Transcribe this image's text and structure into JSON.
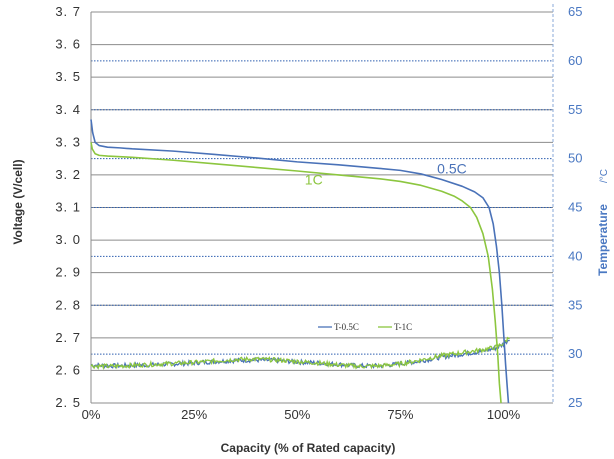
{
  "chart_data": {
    "type": "line",
    "xlabel": "Capacity  (% of Rated capacity)",
    "ylabel": "Voltage  (V/cell)",
    "y2label": "Temperature",
    "y2unit": "/°C",
    "xlim": [
      0,
      112
    ],
    "ylim": [
      2.5,
      3.7
    ],
    "y2lim": [
      25,
      65
    ],
    "xticks": [
      "0%",
      "25%",
      "50%",
      "75%",
      "100%"
    ],
    "xtick_values": [
      0,
      25,
      50,
      75,
      100
    ],
    "yticks": [
      "2. 5",
      "2. 6",
      "2. 7",
      "2. 8",
      "2. 9",
      "3. 0",
      "3. 1",
      "3. 2",
      "3. 3",
      "3. 4",
      "3. 5",
      "3. 6",
      "3. 7"
    ],
    "ytick_values": [
      2.5,
      2.6,
      2.7,
      2.8,
      2.9,
      3.0,
      3.1,
      3.2,
      3.3,
      3.4,
      3.5,
      3.6,
      3.7
    ],
    "y2ticks": [
      "25",
      "30",
      "35",
      "40",
      "45",
      "50",
      "55",
      "60",
      "65"
    ],
    "y2tick_values": [
      25,
      30,
      35,
      40,
      45,
      50,
      55,
      60,
      65
    ],
    "grid": true,
    "legend_position": "bottom-center",
    "series": [
      {
        "name": "0.5C",
        "axis": "left",
        "color": "#4a72b8",
        "x": [
          0,
          0.4,
          1,
          2,
          4,
          7,
          10,
          20,
          30,
          40,
          50,
          60,
          70,
          75,
          80,
          85,
          90,
          93,
          95,
          96.5,
          97.5,
          98.3,
          99,
          99.6,
          100.1,
          100.5,
          100.9,
          101.2
        ],
        "y": [
          3.37,
          3.33,
          3.3,
          3.29,
          3.285,
          3.283,
          3.28,
          3.273,
          3.263,
          3.252,
          3.24,
          3.231,
          3.22,
          3.214,
          3.203,
          3.186,
          3.165,
          3.148,
          3.13,
          3.1,
          3.05,
          2.98,
          2.9,
          2.8,
          2.7,
          2.62,
          2.55,
          2.5
        ]
      },
      {
        "name": "1C",
        "axis": "left",
        "color": "#8cc63f",
        "x": [
          0,
          0.3,
          1,
          2,
          4,
          7,
          10,
          20,
          30,
          40,
          50,
          60,
          70,
          75,
          80,
          85,
          88,
          90,
          92,
          93.5,
          95,
          96.3,
          97.3,
          98,
          98.6,
          99,
          99.4
        ],
        "y": [
          3.3,
          3.28,
          3.265,
          3.26,
          3.258,
          3.256,
          3.254,
          3.245,
          3.234,
          3.223,
          3.212,
          3.2,
          3.188,
          3.18,
          3.168,
          3.15,
          3.135,
          3.12,
          3.1,
          3.07,
          3.02,
          2.95,
          2.85,
          2.75,
          2.65,
          2.56,
          2.5
        ]
      },
      {
        "name": "T-0.5C",
        "axis": "right",
        "color": "#4a72b8",
        "x": [
          0,
          5,
          10,
          15,
          20,
          25,
          30,
          35,
          40,
          45,
          50,
          55,
          60,
          65,
          70,
          75,
          80,
          85,
          90,
          95,
          98,
          100,
          101.5
        ],
        "y": [
          28.9,
          28.8,
          28.85,
          28.9,
          29.0,
          29.1,
          29.25,
          29.35,
          29.4,
          29.35,
          29.2,
          29.1,
          28.95,
          28.8,
          28.8,
          29.0,
          29.3,
          29.7,
          30.0,
          30.3,
          30.6,
          31.0,
          31.6
        ]
      },
      {
        "name": "T-1C",
        "axis": "right",
        "color": "#8cc63f",
        "x": [
          0,
          5,
          10,
          15,
          20,
          25,
          30,
          35,
          40,
          45,
          50,
          55,
          60,
          65,
          70,
          75,
          80,
          85,
          90,
          95,
          98,
          100,
          101.5
        ],
        "y": [
          28.8,
          28.75,
          28.85,
          28.95,
          29.05,
          29.15,
          29.3,
          29.45,
          29.5,
          29.4,
          29.25,
          29.1,
          28.9,
          28.75,
          28.8,
          29.0,
          29.4,
          29.85,
          30.15,
          30.45,
          30.7,
          31.1,
          31.8
        ]
      }
    ],
    "annotations": [
      {
        "text": "0.5C",
        "series": "0.5C",
        "x": 87.5,
        "y": 3.205
      },
      {
        "text": "1C",
        "series": "1C",
        "x": 54,
        "y": 3.17
      }
    ],
    "legend": [
      {
        "label": "T-0.5C",
        "series": "T-0.5C"
      },
      {
        "label": "T-1C",
        "series": "T-1C"
      }
    ]
  }
}
